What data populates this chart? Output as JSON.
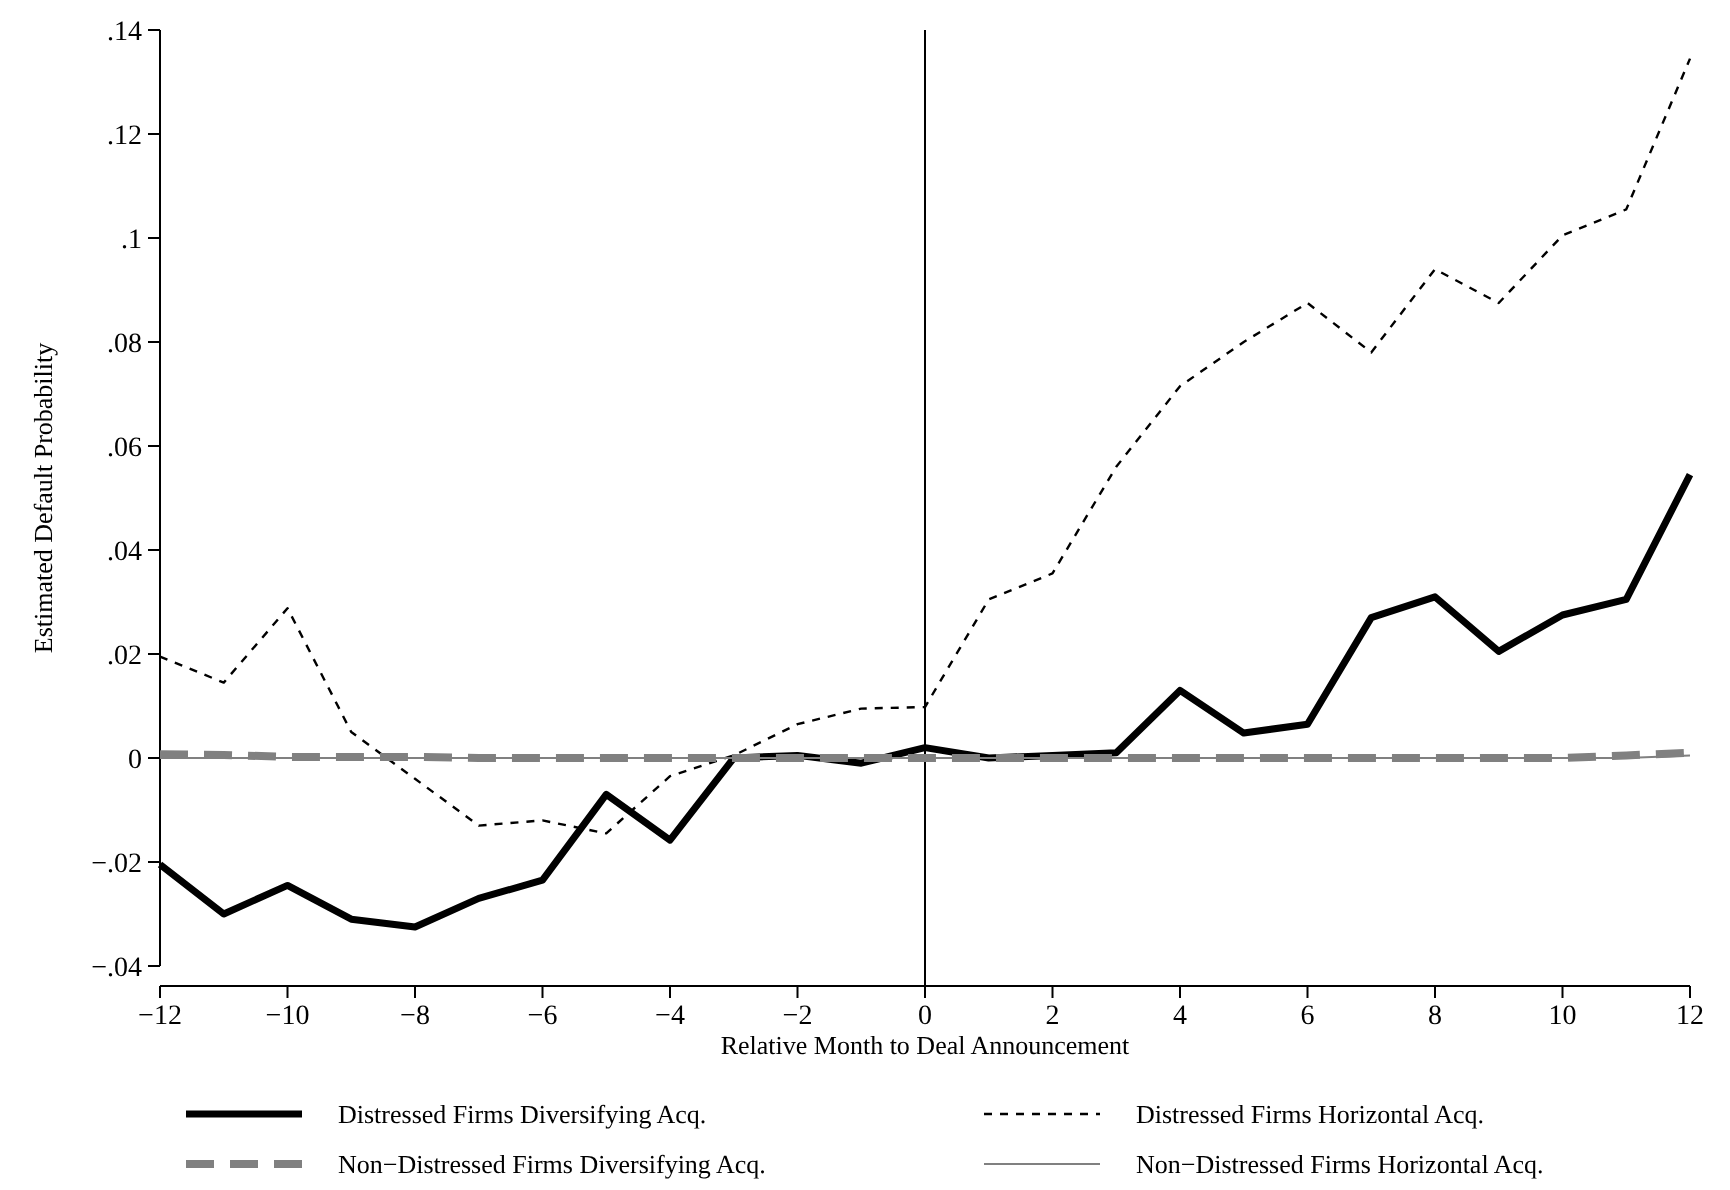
{
  "chart_data": {
    "type": "line",
    "xlabel": "Relative Month to Deal Announcement",
    "ylabel": "Estimated Default Probability",
    "x": [
      -12,
      -11,
      -10,
      -9,
      -8,
      -7,
      -6,
      -5,
      -4,
      -3,
      -2,
      -1,
      0,
      1,
      2,
      3,
      4,
      5,
      6,
      7,
      8,
      9,
      10,
      11,
      12
    ],
    "series": [
      {
        "name": "Distressed Firms Diversifying Acq.",
        "color": "#000000",
        "line_style": "solid",
        "values": [
          -0.0205,
          -0.03,
          -0.0245,
          -0.031,
          -0.0325,
          -0.027,
          -0.0235,
          -0.007,
          -0.0158,
          0,
          0.0005,
          -0.001,
          0.002,
          0,
          0.0005,
          0.001,
          0.013,
          0.0048,
          0.0065,
          0.027,
          0.031,
          0.0205,
          0.0275,
          0.0305,
          0.0545
        ]
      },
      {
        "name": "Distressed Firms Horizontal Acq.",
        "color": "#000000",
        "line_style": "dashed",
        "values": [
          0.0195,
          0.0145,
          0.0288,
          0.005,
          -0.004,
          -0.013,
          -0.012,
          -0.0145,
          -0.0035,
          0.0005,
          0.0065,
          0.0095,
          0.0098,
          0.0305,
          0.0355,
          0.056,
          0.0715,
          0.08,
          0.0875,
          0.078,
          0.094,
          0.0875,
          0.1005,
          0.1055,
          0.1345
        ]
      },
      {
        "name": "Non−Distressed Firms Diversifying Acq.",
        "color": "#808080",
        "line_style": "dashed",
        "values": [
          0.0007,
          0.0006,
          0.0002,
          0.0002,
          0.0002,
          0,
          0,
          0,
          0,
          0,
          0,
          0,
          0,
          0,
          0,
          0,
          0,
          0,
          0,
          0,
          0,
          0,
          0,
          0.0005,
          0.001
        ]
      },
      {
        "name": "Non−Distressed Firms Horizontal Acq.",
        "color": "#808080",
        "line_style": "solid",
        "values": [
          0,
          0,
          0,
          0,
          0,
          0,
          0,
          0,
          0,
          0,
          0,
          0,
          0,
          0,
          0,
          0,
          0,
          0,
          0,
          0,
          0,
          0,
          0,
          0,
          0.0005
        ]
      }
    ],
    "xlim": [
      -12,
      12
    ],
    "xticks": [
      {
        "value": -12,
        "label": "−12"
      },
      {
        "value": -10,
        "label": "−10"
      },
      {
        "value": -8,
        "label": "−8"
      },
      {
        "value": -6,
        "label": "−6"
      },
      {
        "value": -4,
        "label": "−4"
      },
      {
        "value": -2,
        "label": "−2"
      },
      0,
      2,
      4,
      6,
      8,
      10,
      12
    ],
    "ylim": [
      -0.04,
      0.14
    ],
    "yticks": [
      {
        "value": -0.04,
        "label": "−.04"
      },
      {
        "value": -0.02,
        "label": "−.02"
      },
      0,
      {
        "value": 0.02,
        "label": ".02"
      },
      {
        "value": 0.04,
        "label": ".04"
      },
      {
        "value": 0.06,
        "label": ".06"
      },
      {
        "value": 0.08,
        "label": ".08"
      },
      {
        "value": 0.1,
        "label": ".1"
      },
      {
        "value": 0.12,
        "label": ".12"
      },
      {
        "value": 0.14,
        "label": ".14"
      }
    ],
    "ref_lines": [
      {
        "axis": "x",
        "value": 0,
        "color": "#000000"
      }
    ],
    "grid": false,
    "legend": "bottom"
  }
}
